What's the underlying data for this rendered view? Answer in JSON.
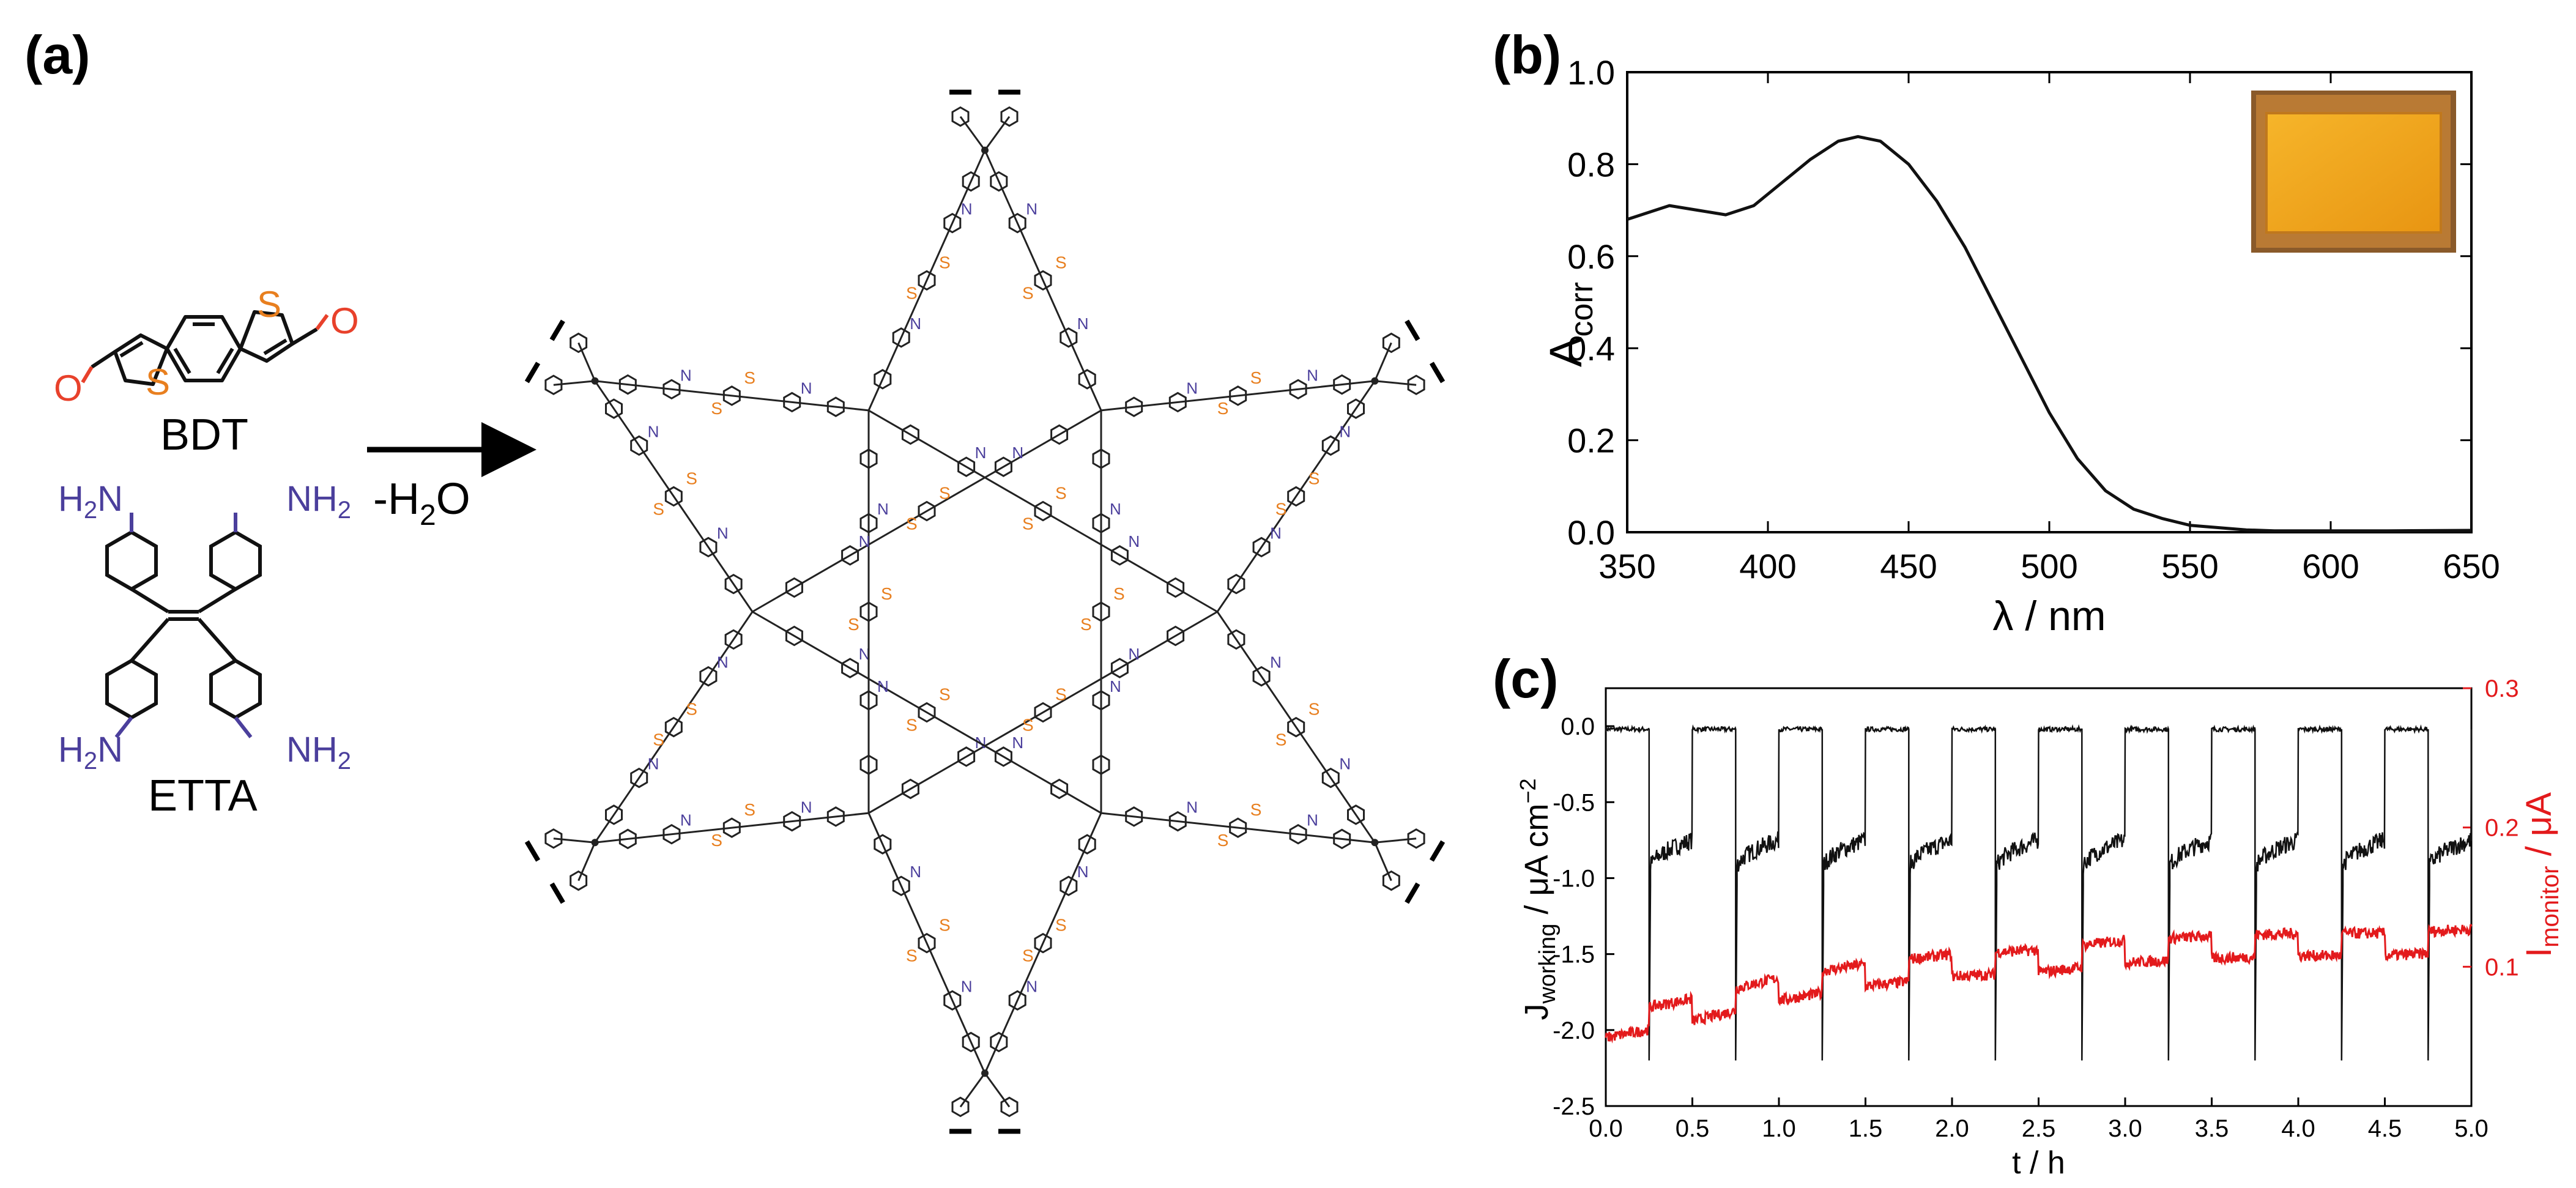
{
  "panels": {
    "a": {
      "label": "(a)",
      "bdt": {
        "name": "BDT",
        "atom_S": "S",
        "atom_O": "O"
      },
      "etta": {
        "name": "ETTA",
        "amine_H2": "H",
        "amine_N": "N",
        "sub_2": "2"
      },
      "reaction": {
        "condition_prefix": "-H",
        "condition_sub": "2",
        "condition_suffix": "O"
      },
      "framework": {
        "atom_N": "N",
        "atom_S": "S"
      }
    },
    "b": {
      "label": "(b)",
      "inset": "yellow-orange COF film on substrate (photo)"
    },
    "c": {
      "label": "(c)"
    }
  },
  "colors": {
    "amine": "#4b3f9c",
    "oxygen": "#e8412b",
    "sulfur": "#e87f1f",
    "trace_black": "#111111",
    "trace_red": "#e31a1c",
    "film": "#f0a81e"
  },
  "chart_data": [
    {
      "id": "uv-vis",
      "type": "line",
      "xlabel": "λ / nm",
      "ylabel_main": "A",
      "ylabel_sub": "corr",
      "xlim": [
        350,
        650
      ],
      "ylim": [
        0.0,
        1.0
      ],
      "xticks": [
        "350",
        "400",
        "450",
        "500",
        "550",
        "600",
        "650"
      ],
      "yticks": [
        "0.0",
        "0.2",
        "0.4",
        "0.6",
        "0.8",
        "1.0"
      ],
      "series": [
        {
          "name": "absorbance",
          "x": [
            350,
            360,
            365,
            375,
            385,
            395,
            405,
            415,
            425,
            432,
            440,
            450,
            460,
            470,
            480,
            490,
            500,
            510,
            520,
            530,
            540,
            550,
            560,
            570,
            580,
            600,
            620,
            650
          ],
          "y": [
            0.68,
            0.7,
            0.71,
            0.7,
            0.69,
            0.71,
            0.76,
            0.81,
            0.85,
            0.86,
            0.85,
            0.8,
            0.72,
            0.62,
            0.5,
            0.38,
            0.26,
            0.16,
            0.09,
            0.05,
            0.03,
            0.015,
            0.01,
            0.005,
            0.003,
            0.003,
            0.003,
            0.004
          ]
        }
      ]
    },
    {
      "id": "photocurrent",
      "type": "line",
      "xlabel": "t / h",
      "ylabel_left_main": "J",
      "ylabel_left_sub": "working",
      "ylabel_left_unit": " / μA cm",
      "ylabel_left_sup": "−2",
      "ylabel_right_main": "I",
      "ylabel_right_sub": "monitor",
      "ylabel_right_unit": " / μA",
      "xlim": [
        0.0,
        5.0
      ],
      "ylim_left": [
        -2.5,
        0.25
      ],
      "ylim_right": [
        0.0,
        0.3
      ],
      "xticks": [
        "0.0",
        "0.5",
        "1.0",
        "1.5",
        "2.0",
        "2.5",
        "3.0",
        "3.5",
        "4.0",
        "4.5",
        "5.0"
      ],
      "yticks_left": [
        "0.0",
        "-0.5",
        "-1.0",
        "-1.5",
        "-2.0",
        "-2.5"
      ],
      "yticks_right": [
        "0.1",
        "0.2",
        "0.3"
      ],
      "on_periods_h": [
        [
          0.25,
          0.5
        ],
        [
          0.75,
          1.0
        ],
        [
          1.25,
          1.5
        ],
        [
          1.75,
          2.0
        ],
        [
          2.25,
          2.5
        ],
        [
          2.75,
          3.0
        ],
        [
          3.25,
          3.5
        ],
        [
          3.75,
          4.0
        ],
        [
          4.25,
          4.5
        ],
        [
          4.75,
          5.0
        ]
      ],
      "series": [
        {
          "name": "J_working dark level",
          "axis": "left",
          "value": -0.02
        },
        {
          "name": "J_working illuminated spike",
          "axis": "left",
          "value": -2.2
        },
        {
          "name": "J_working illuminated plateau",
          "axis": "left",
          "start": -0.95,
          "end": -0.75
        },
        {
          "name": "I_monitor baseline",
          "axis": "right",
          "x": [
            0.0,
            0.5,
            1.0,
            1.5,
            2.0,
            2.5,
            3.0,
            3.5,
            4.0,
            4.5,
            5.0
          ],
          "y": [
            0.053,
            0.065,
            0.08,
            0.09,
            0.097,
            0.1,
            0.107,
            0.11,
            0.112,
            0.112,
            0.115
          ]
        }
      ]
    }
  ]
}
